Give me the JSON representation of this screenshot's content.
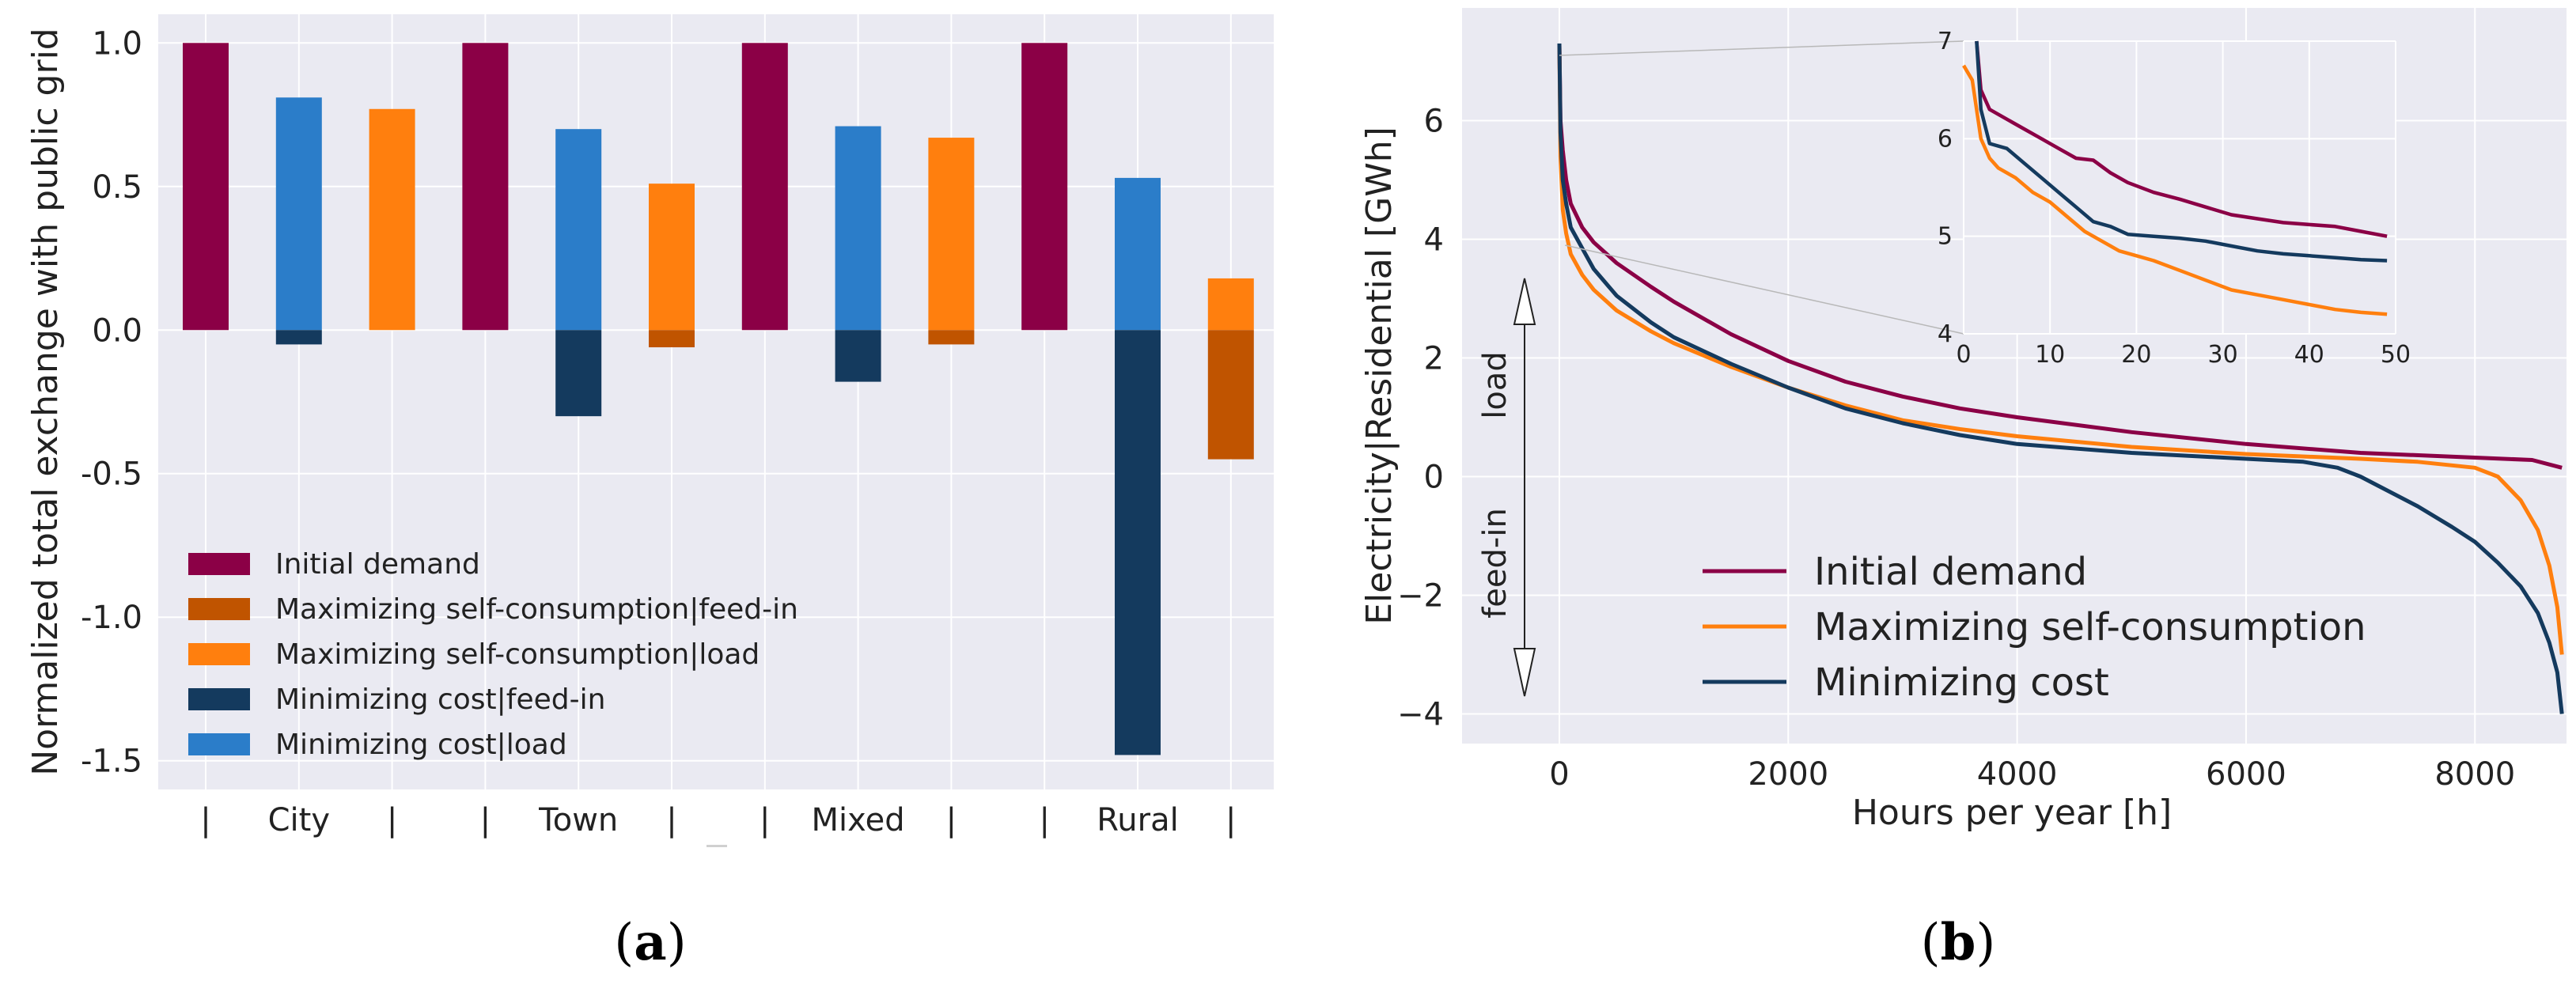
{
  "colors": {
    "initial": "#8b0046",
    "self_feedin": "#c05400",
    "self_load": "#ff7f0e",
    "cost_feedin": "#143a5e",
    "cost_load": "#2b7dc9",
    "bg": "#eaeaf2",
    "grid": "#ffffff"
  },
  "chart_data": [
    {
      "id": "a",
      "type": "bar",
      "caption": "a",
      "ylabel": "Normalized total exchange with public grid",
      "ylim": [
        -1.6,
        1.1
      ],
      "yticks": [
        "1.0",
        "0.5",
        "0.0",
        "-0.5",
        "-1.0",
        "-1.5"
      ],
      "ytick_values": [
        1.0,
        0.5,
        0.0,
        -0.5,
        -1.0,
        -1.5
      ],
      "xtick_labels": [
        "|",
        "City",
        "|",
        "|",
        "Town",
        "|",
        "|",
        "Mixed",
        "|",
        "|",
        "Rural",
        "|"
      ],
      "groups": [
        "City",
        "Town",
        "Mixed",
        "Rural"
      ],
      "series": [
        {
          "name": "Initial demand",
          "key": "initial",
          "values": [
            1.0,
            1.0,
            1.0,
            1.0
          ]
        },
        {
          "name": "Minimizing cost|load",
          "key": "cost_load",
          "values": [
            0.81,
            0.7,
            0.71,
            0.53
          ]
        },
        {
          "name": "Minimizing cost|feed-in",
          "key": "cost_feedin",
          "values": [
            -0.05,
            -0.3,
            -0.18,
            -1.48
          ]
        },
        {
          "name": "Maximizing self-consumption|load",
          "key": "self_load",
          "values": [
            0.77,
            0.51,
            0.67,
            0.18
          ]
        },
        {
          "name": "Maximizing self-consumption|feed-in",
          "key": "self_feedin",
          "values": [
            0.0,
            -0.06,
            -0.05,
            -0.45
          ]
        }
      ],
      "legend": [
        {
          "label": "Initial demand",
          "key": "initial"
        },
        {
          "label": "Maximizing self-consumption|feed-in",
          "key": "self_feedin"
        },
        {
          "label": "Maximizing self-consumption|load",
          "key": "self_load"
        },
        {
          "label": "Minimizing cost|feed-in",
          "key": "cost_feedin"
        },
        {
          "label": "Minimizing cost|load",
          "key": "cost_load"
        }
      ],
      "legend_position": "lower-left"
    },
    {
      "id": "b",
      "type": "line",
      "caption": "b",
      "xlabel": "Hours per year [h]",
      "ylabel": "Electricity|Residential [GWh]",
      "xlim": [
        -850,
        8800
      ],
      "ylim": [
        -4.5,
        7.9
      ],
      "xticks": [
        0,
        2000,
        4000,
        6000,
        8000
      ],
      "xtick_labels": [
        "0",
        "2000",
        "4000",
        "6000",
        "8000"
      ],
      "yticks": [
        6,
        4,
        2,
        0,
        -2,
        -4
      ],
      "ytick_labels": [
        "6",
        "4",
        "2",
        "0",
        "−2",
        "−4"
      ],
      "annotations": {
        "load": "load",
        "feedin": "feed-in"
      },
      "series": [
        {
          "name": "Initial demand",
          "key": "initial",
          "x": [
            0,
            10,
            30,
            60,
            100,
            200,
            300,
            500,
            800,
            1000,
            1500,
            2000,
            2500,
            3000,
            3500,
            4000,
            5000,
            6000,
            7000,
            8000,
            8500,
            8760
          ],
          "y": [
            7.3,
            6.0,
            5.5,
            5.0,
            4.6,
            4.2,
            3.95,
            3.6,
            3.2,
            2.95,
            2.4,
            1.95,
            1.6,
            1.35,
            1.15,
            1.0,
            0.75,
            0.55,
            0.4,
            0.32,
            0.28,
            0.15
          ]
        },
        {
          "name": "Maximizing self-consumption",
          "key": "self_load",
          "x": [
            0,
            10,
            30,
            60,
            100,
            200,
            300,
            500,
            800,
            1000,
            1500,
            2000,
            2500,
            3000,
            3500,
            4000,
            5000,
            6000,
            7000,
            7500,
            8000,
            8200,
            8400,
            8550,
            8650,
            8720,
            8760
          ],
          "y": [
            7.3,
            5.4,
            4.5,
            4.1,
            3.75,
            3.4,
            3.15,
            2.8,
            2.45,
            2.25,
            1.85,
            1.5,
            1.2,
            0.95,
            0.8,
            0.68,
            0.5,
            0.38,
            0.3,
            0.25,
            0.15,
            0.0,
            -0.4,
            -0.9,
            -1.5,
            -2.2,
            -3.0
          ]
        },
        {
          "name": "Minimizing cost",
          "key": "cost_feedin",
          "x": [
            0,
            10,
            30,
            60,
            100,
            200,
            300,
            500,
            800,
            1000,
            1500,
            2000,
            2500,
            3000,
            3500,
            4000,
            5000,
            6000,
            6500,
            6800,
            7000,
            7200,
            7500,
            7800,
            8000,
            8200,
            8400,
            8550,
            8650,
            8720,
            8760
          ],
          "y": [
            7.3,
            5.8,
            5.0,
            4.6,
            4.2,
            3.85,
            3.5,
            3.05,
            2.6,
            2.35,
            1.9,
            1.5,
            1.15,
            0.9,
            0.7,
            0.55,
            0.4,
            0.3,
            0.25,
            0.15,
            0.0,
            -0.2,
            -0.5,
            -0.85,
            -1.1,
            -1.45,
            -1.85,
            -2.3,
            -2.8,
            -3.3,
            -4.0
          ]
        }
      ],
      "legend": [
        {
          "label": "Initial demand",
          "key": "initial"
        },
        {
          "label": "Maximizing self-consumption",
          "key": "self_load"
        },
        {
          "label": "Minimizing cost",
          "key": "cost_feedin"
        }
      ],
      "legend_position": "lower-center",
      "inset": {
        "xlim": [
          0,
          50
        ],
        "ylim": [
          4,
          7
        ],
        "xticks": [
          0,
          10,
          20,
          30,
          40,
          50
        ],
        "xtick_labels": [
          "0",
          "10",
          "20",
          "30",
          "40",
          "50"
        ],
        "yticks": [
          4,
          5,
          6,
          7
        ],
        "ytick_labels": [
          "4",
          "5",
          "6",
          "7"
        ],
        "series": [
          {
            "key": "initial",
            "x": [
              1.5,
              2,
              3,
              5,
              7,
              9,
              11,
              13,
              15,
              17,
              19,
              22,
              25,
              28,
              31,
              34,
              37,
              40,
              43,
              46,
              49
            ],
            "y": [
              7.0,
              6.5,
              6.3,
              6.2,
              6.1,
              6.0,
              5.9,
              5.8,
              5.78,
              5.65,
              5.55,
              5.45,
              5.38,
              5.3,
              5.22,
              5.18,
              5.14,
              5.12,
              5.1,
              5.05,
              5.0
            ]
          },
          {
            "key": "self_load",
            "x": [
              0,
              1,
              2,
              3,
              4,
              6,
              8,
              10,
              12,
              14,
              16,
              18,
              20,
              22,
              25,
              28,
              31,
              34,
              37,
              40,
              43,
              46,
              49
            ],
            "y": [
              6.75,
              6.6,
              6.0,
              5.8,
              5.7,
              5.6,
              5.45,
              5.35,
              5.2,
              5.05,
              4.95,
              4.85,
              4.8,
              4.75,
              4.65,
              4.55,
              4.45,
              4.4,
              4.35,
              4.3,
              4.25,
              4.22,
              4.2
            ]
          },
          {
            "key": "cost_feedin",
            "x": [
              1.5,
              2,
              3,
              5,
              7,
              9,
              11,
              13,
              15,
              17,
              19,
              22,
              25,
              28,
              31,
              34,
              37,
              40,
              43,
              46,
              49
            ],
            "y": [
              7.0,
              6.3,
              5.95,
              5.9,
              5.75,
              5.6,
              5.45,
              5.3,
              5.15,
              5.1,
              5.02,
              5.0,
              4.98,
              4.95,
              4.9,
              4.85,
              4.82,
              4.8,
              4.78,
              4.76,
              4.75
            ]
          }
        ]
      }
    }
  ]
}
